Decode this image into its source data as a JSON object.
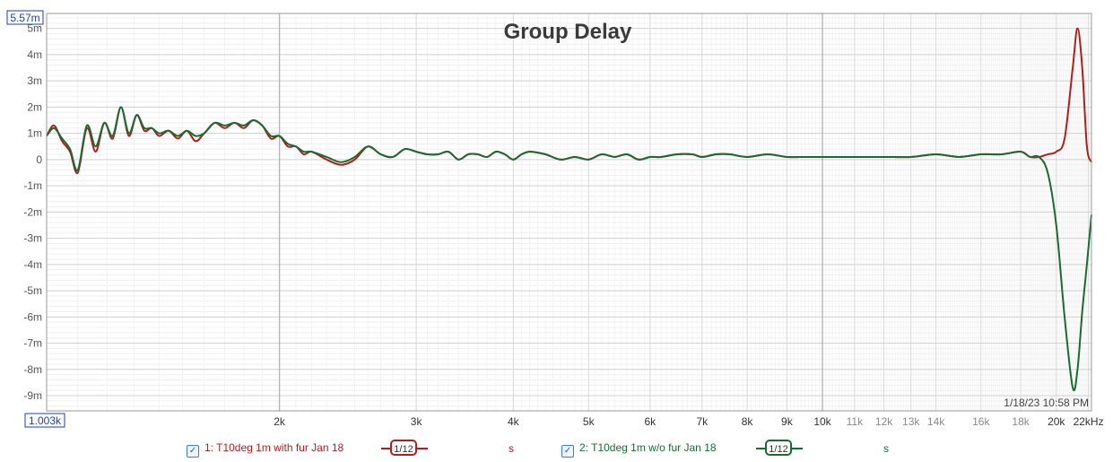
{
  "chart_data": {
    "type": "line",
    "title": "Group Delay",
    "x_scale": "log",
    "xlim": [
      1003,
      22200
    ],
    "ylim": [
      -0.00958,
      0.00557
    ],
    "x_ticks": [
      {
        "v": 1003,
        "label": "1.003k"
      },
      {
        "v": 2000,
        "label": "2k"
      },
      {
        "v": 3000,
        "label": "3k"
      },
      {
        "v": 4000,
        "label": "4k"
      },
      {
        "v": 5000,
        "label": "5k"
      },
      {
        "v": 6000,
        "label": "6k"
      },
      {
        "v": 7000,
        "label": "7k"
      },
      {
        "v": 8000,
        "label": "8k"
      },
      {
        "v": 9000,
        "label": "9k"
      },
      {
        "v": 10000,
        "label": "10k"
      },
      {
        "v": 11000,
        "label": "11k"
      },
      {
        "v": 12000,
        "label": "12k"
      },
      {
        "v": 13000,
        "label": "13k"
      },
      {
        "v": 14000,
        "label": "14k"
      },
      {
        "v": 16000,
        "label": "16k"
      },
      {
        "v": 18000,
        "label": "18k"
      },
      {
        "v": 20000,
        "label": "20k"
      },
      {
        "v": 22000,
        "label": "22kHz"
      }
    ],
    "y_ticks": [
      {
        "v": 0.005,
        "label": "5m"
      },
      {
        "v": 0.004,
        "label": "4m"
      },
      {
        "v": 0.003,
        "label": "3m"
      },
      {
        "v": 0.002,
        "label": "2m"
      },
      {
        "v": 0.001,
        "label": "1m"
      },
      {
        "v": 0,
        "label": "0"
      },
      {
        "v": -0.001,
        "label": "-1m"
      },
      {
        "v": -0.002,
        "label": "-2m"
      },
      {
        "v": -0.003,
        "label": "-3m"
      },
      {
        "v": -0.004,
        "label": "-4m"
      },
      {
        "v": -0.005,
        "label": "-5m"
      },
      {
        "v": -0.006,
        "label": "-6m"
      },
      {
        "v": -0.007,
        "label": "-7m"
      },
      {
        "v": -0.008,
        "label": "-8m"
      },
      {
        "v": -0.009,
        "label": "-9m"
      }
    ],
    "y_top_label": "5.57m",
    "x_left_label": "1.003k",
    "y_unit_label": "s",
    "timestamp": "1/18/23 10:58 PM",
    "grid": true,
    "series": [
      {
        "name": "1: T10deg 1m with fur Jan 18",
        "color": "#b01e1e",
        "x": [
          1003,
          1025,
          1050,
          1075,
          1100,
          1130,
          1160,
          1190,
          1220,
          1250,
          1280,
          1310,
          1340,
          1370,
          1400,
          1440,
          1480,
          1520,
          1560,
          1600,
          1650,
          1700,
          1750,
          1800,
          1850,
          1900,
          1950,
          2000,
          2050,
          2100,
          2150,
          2200,
          2300,
          2400,
          2500,
          2600,
          2700,
          2800,
          2900,
          3000,
          3100,
          3200,
          3300,
          3400,
          3500,
          3600,
          3700,
          3800,
          3900,
          4000,
          4100,
          4200,
          4400,
          4600,
          4800,
          5000,
          5200,
          5400,
          5600,
          5800,
          6000,
          6200,
          6500,
          6800,
          7000,
          7300,
          7600,
          8000,
          8500,
          9000,
          9500,
          10000,
          11000,
          12000,
          13000,
          14000,
          15000,
          16000,
          17000,
          18000,
          18500,
          19000,
          19500,
          20000,
          20500,
          21000,
          21300,
          21600,
          21900,
          22200
        ],
        "y": [
          0.0009,
          0.0013,
          0.0007,
          0.0003,
          -0.0005,
          0.0012,
          0.0003,
          0.0014,
          0.0008,
          0.002,
          0.0009,
          0.0017,
          0.0011,
          0.0012,
          0.0009,
          0.0011,
          0.0008,
          0.0011,
          0.0007,
          0.001,
          0.0014,
          0.0012,
          0.0014,
          0.0012,
          0.0015,
          0.0013,
          0.0008,
          0.0009,
          0.0005,
          0.0005,
          0.0002,
          0.0003,
          0.0,
          -0.0002,
          0.0,
          0.0005,
          0.0002,
          0.0001,
          0.0004,
          0.0003,
          0.0002,
          0.0002,
          0.0003,
          0.0,
          0.0002,
          0.0002,
          0.0001,
          0.0003,
          0.0002,
          0.0,
          0.0002,
          0.0003,
          0.0002,
          0.0,
          0.0001,
          0.0,
          0.0002,
          0.0001,
          0.0002,
          0.0,
          0.0001,
          0.0001,
          0.0002,
          0.0002,
          0.0001,
          0.0002,
          0.0002,
          0.0001,
          0.0002,
          0.0001,
          0.0001,
          0.0001,
          0.0001,
          0.0001,
          0.0001,
          0.0002,
          0.0001,
          0.0002,
          0.0002,
          0.0003,
          0.0001,
          0.0001,
          0.0002,
          0.0003,
          0.0008,
          0.0035,
          0.005,
          0.0035,
          0.0005,
          -0.0001
        ]
      },
      {
        "name": "2: T10deg 1m w/o fur Jan 18",
        "color": "#1a6b32",
        "x": [
          1003,
          1025,
          1050,
          1075,
          1100,
          1130,
          1160,
          1190,
          1220,
          1250,
          1280,
          1310,
          1340,
          1370,
          1400,
          1440,
          1480,
          1520,
          1560,
          1600,
          1650,
          1700,
          1750,
          1800,
          1850,
          1900,
          1950,
          2000,
          2050,
          2100,
          2150,
          2200,
          2300,
          2400,
          2500,
          2600,
          2700,
          2800,
          2900,
          3000,
          3100,
          3200,
          3300,
          3400,
          3500,
          3600,
          3700,
          3800,
          3900,
          4000,
          4100,
          4200,
          4400,
          4600,
          4800,
          5000,
          5200,
          5400,
          5600,
          5800,
          6000,
          6200,
          6500,
          6800,
          7000,
          7300,
          7600,
          8000,
          8500,
          9000,
          9500,
          10000,
          11000,
          12000,
          13000,
          14000,
          15000,
          16000,
          17000,
          18000,
          18500,
          19000,
          19500,
          20000,
          20500,
          21000,
          21300,
          21600,
          21900,
          22200
        ],
        "y": [
          0.0009,
          0.0012,
          0.0008,
          0.0004,
          -0.0004,
          0.0013,
          0.0005,
          0.0014,
          0.0009,
          0.002,
          0.001,
          0.0017,
          0.0012,
          0.0012,
          0.001,
          0.0011,
          0.0009,
          0.0011,
          0.0009,
          0.001,
          0.0014,
          0.0013,
          0.0014,
          0.0013,
          0.0015,
          0.0013,
          0.0009,
          0.0009,
          0.0006,
          0.0005,
          0.0003,
          0.0003,
          0.0001,
          -0.0001,
          0.0001,
          0.0005,
          0.0002,
          0.0001,
          0.0004,
          0.0003,
          0.0002,
          0.0002,
          0.0003,
          0.0,
          0.0002,
          0.0002,
          0.0001,
          0.0003,
          0.0002,
          0.0,
          0.0002,
          0.0003,
          0.0002,
          0.0,
          0.0001,
          0.0,
          0.0002,
          0.0001,
          0.0002,
          0.0,
          0.0001,
          0.0001,
          0.0002,
          0.0002,
          0.0001,
          0.0002,
          0.0002,
          0.0001,
          0.0002,
          0.0001,
          0.0001,
          0.0001,
          0.0001,
          0.0001,
          0.0001,
          0.0002,
          0.0001,
          0.0002,
          0.0002,
          0.0003,
          0.0001,
          0.0001,
          -0.0005,
          -0.0025,
          -0.006,
          -0.0087,
          -0.008,
          -0.0058,
          -0.004,
          -0.0021
        ]
      }
    ]
  },
  "legend": {
    "items": [
      {
        "label": "1: T10deg 1m with fur Jan 18",
        "smoothing": "1/12",
        "unit": "s",
        "color": "#b01e1e",
        "checked": true
      },
      {
        "label": "2: T10deg 1m w/o fur Jan 18",
        "smoothing": "1/12",
        "unit": "s",
        "color": "#1a6b32",
        "checked": true
      }
    ]
  }
}
